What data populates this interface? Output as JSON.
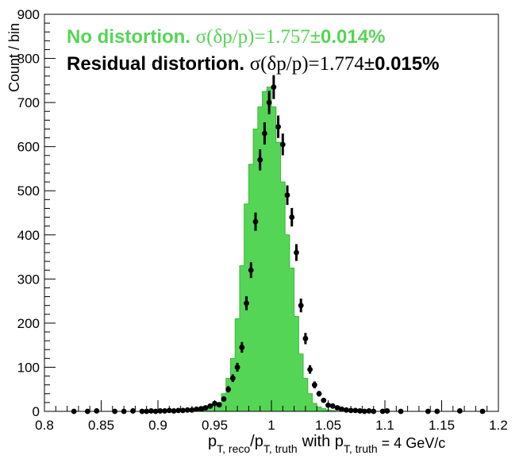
{
  "chart_data": {
    "type": "bar",
    "colors": {
      "hist_fill": "#55d555",
      "hist_line": "#3cb83c",
      "points": "#000000",
      "legend_green": "#55d555",
      "legend_black": "#000000"
    },
    "xlim": [
      0.8,
      1.2
    ],
    "ylim": [
      0,
      900
    ],
    "x_ticks": [
      "0.8",
      "0.85",
      "0.9",
      "0.95",
      "1",
      "1.05",
      "1.1",
      "1.15",
      "1.2"
    ],
    "y_ticks": [
      "0",
      "100",
      "200",
      "300",
      "400",
      "500",
      "600",
      "700",
      "800",
      "900"
    ],
    "ylabel": "Count / bin",
    "xlabel": {
      "p1": "p",
      "sub1": "T, reco",
      "p2": "/p",
      "sub2": "T, truth",
      "mid": "with p",
      "sub3": "T, truth",
      "tail": " = 4 GeV/c"
    },
    "legend": {
      "green": {
        "prefix": "No distortion. ",
        "sigma": "σ(δp/p)=1.757",
        "pm": "±",
        "tail": "0.014%"
      },
      "black": {
        "prefix": "Residual distortion. ",
        "sigma": "σ(δp/p)=1.774",
        "pm": "±",
        "tail": "0.015%"
      }
    },
    "histogram": {
      "name": "No distortion",
      "bin_width": 0.004,
      "bin_centers": [
        0.938,
        0.942,
        0.946,
        0.95,
        0.954,
        0.958,
        0.962,
        0.966,
        0.97,
        0.974,
        0.978,
        0.982,
        0.986,
        0.99,
        0.994,
        0.998,
        1.002,
        1.006,
        1.01,
        1.014,
        1.018,
        1.022,
        1.026,
        1.03,
        1.034,
        1.038,
        1.042,
        1.046,
        1.05,
        1.054
      ],
      "values": [
        3,
        5,
        8,
        12,
        20,
        40,
        75,
        120,
        210,
        330,
        470,
        560,
        640,
        690,
        725,
        735,
        690,
        610,
        520,
        400,
        325,
        215,
        130,
        75,
        40,
        18,
        10,
        6,
        3,
        2
      ]
    },
    "points": {
      "name": "Residual distortion",
      "x": [
        0.826,
        0.838,
        0.846,
        0.862,
        0.87,
        0.878,
        0.886,
        0.89,
        0.894,
        0.898,
        0.902,
        0.906,
        0.91,
        0.914,
        0.918,
        0.922,
        0.926,
        0.93,
        0.934,
        0.938,
        0.942,
        0.946,
        0.95,
        0.954,
        0.958,
        0.962,
        0.966,
        0.97,
        0.974,
        0.978,
        0.982,
        0.986,
        0.99,
        0.994,
        0.998,
        1.002,
        1.006,
        1.01,
        1.014,
        1.018,
        1.022,
        1.026,
        1.03,
        1.034,
        1.038,
        1.042,
        1.046,
        1.05,
        1.054,
        1.058,
        1.062,
        1.066,
        1.07,
        1.074,
        1.078,
        1.082,
        1.086,
        1.09,
        1.098,
        1.102,
        1.114,
        1.138,
        1.146,
        1.166,
        1.186
      ],
      "y": [
        0,
        0,
        1,
        0,
        0,
        1,
        0,
        0,
        1,
        0,
        1,
        1,
        2,
        1,
        2,
        2,
        3,
        3,
        5,
        6,
        8,
        12,
        18,
        15,
        28,
        50,
        75,
        100,
        145,
        245,
        320,
        430,
        570,
        630,
        700,
        735,
        645,
        605,
        490,
        440,
        360,
        240,
        165,
        95,
        60,
        40,
        25,
        14,
        12,
        8,
        5,
        3,
        2,
        2,
        1,
        0,
        1,
        0,
        0,
        1,
        0,
        0,
        0,
        1,
        0
      ],
      "err": [
        1,
        1,
        1,
        1,
        1,
        1,
        1,
        1,
        1,
        1,
        1,
        1,
        1.4,
        1,
        1.4,
        1.4,
        1.7,
        1.7,
        2.2,
        2.4,
        2.8,
        3.5,
        4.2,
        3.9,
        5.3,
        7.1,
        8.7,
        10,
        12,
        15.7,
        17.9,
        20.7,
        23.9,
        25.1,
        26.5,
        27.1,
        25.4,
        24.6,
        22.1,
        21,
        19,
        15.5,
        12.8,
        9.7,
        7.7,
        6.3,
        5,
        3.7,
        3.5,
        2.8,
        2.2,
        1.7,
        1.4,
        1.4,
        1,
        1,
        1,
        1,
        1,
        1,
        1,
        1,
        1,
        1,
        1
      ]
    }
  }
}
